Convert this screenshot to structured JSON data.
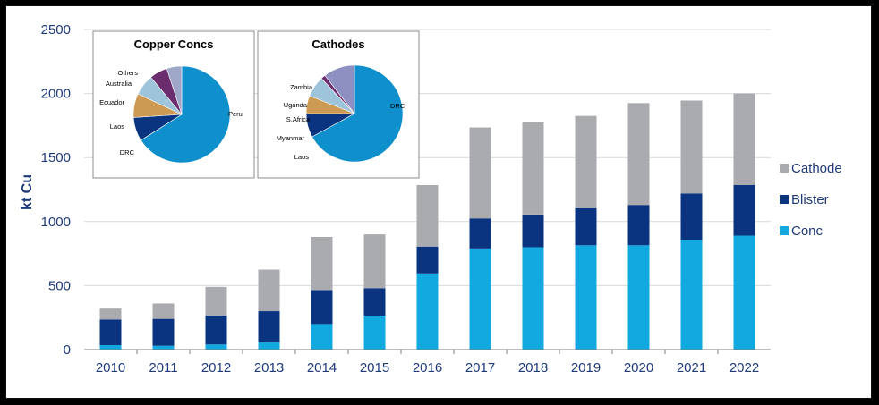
{
  "chart_data": [
    {
      "type": "bar",
      "stacked": true,
      "categories": [
        "2010",
        "2011",
        "2012",
        "2013",
        "2014",
        "2015",
        "2016",
        "2017",
        "2018",
        "2019",
        "2020",
        "2021",
        "2022"
      ],
      "series": [
        {
          "name": "Conc",
          "color": "#12a8e0",
          "values": [
            35,
            30,
            40,
            55,
            200,
            265,
            595,
            790,
            800,
            815,
            815,
            855,
            890
          ]
        },
        {
          "name": "Blister",
          "color": "#0b3480",
          "values": [
            200,
            210,
            225,
            245,
            265,
            215,
            210,
            235,
            255,
            290,
            315,
            365,
            395
          ]
        },
        {
          "name": "Cathode",
          "color": "#a9abaf",
          "values": [
            85,
            120,
            225,
            325,
            415,
            420,
            480,
            710,
            720,
            720,
            795,
            725,
            715
          ]
        }
      ],
      "xlabel": "",
      "ylabel": "kt Cu",
      "ylim": [
        0,
        2500
      ],
      "yticks": [
        0,
        500,
        1000,
        1500,
        2000,
        2500
      ],
      "grid": true,
      "legend_position": "right",
      "legend_order": [
        "Cathode",
        "Blister",
        "Conc"
      ]
    },
    {
      "type": "pie",
      "title": "Copper Concs",
      "labels": [
        "Peru",
        "DRC",
        "Laos",
        "Ecuador",
        "Australia",
        "Others"
      ],
      "values": [
        66,
        8,
        8,
        7,
        6,
        5
      ],
      "colors": [
        "#0f8fcc",
        "#0b3480",
        "#cc9a52",
        "#9ec4dc",
        "#6b2d6e",
        "#9fa7c8"
      ]
    },
    {
      "type": "pie",
      "title": "Cathodes",
      "labels": [
        "DRC",
        "Laos",
        "Myanmar",
        "S.Africa",
        "Uganda",
        "Zambia"
      ],
      "values": [
        67,
        8,
        6,
        7,
        1.5,
        10.5
      ],
      "colors": [
        "#0f8fcc",
        "#0b3480",
        "#cc9a52",
        "#9ec4dc",
        "#6b2d6e",
        "#8f90c2"
      ]
    }
  ]
}
